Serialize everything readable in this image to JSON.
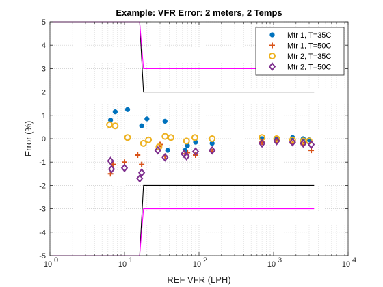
{
  "chart_data": {
    "type": "scatter",
    "title": "Example: VFR Error: 2 meters, 2 Temps",
    "xlabel": "REF VFR (LPH)",
    "ylabel": "Error (%)",
    "xscale": "log",
    "xlim": [
      1,
      10000
    ],
    "ylim": [
      -5,
      5
    ],
    "xticks": [
      1,
      10,
      100,
      1000,
      10000
    ],
    "xtick_labels": [
      {
        "base": "10",
        "exp": "0"
      },
      {
        "base": "10",
        "exp": "1"
      },
      {
        "base": "10",
        "exp": "2"
      },
      {
        "base": "10",
        "exp": "3"
      },
      {
        "base": "10",
        "exp": "4"
      }
    ],
    "yticks": [
      -5,
      -4,
      -3,
      -2,
      -1,
      0,
      1,
      2,
      3,
      4,
      5
    ],
    "grid": true,
    "minor_grid": true,
    "legend_position": "top-right",
    "series": [
      {
        "name": "Mtr 1, T=35C",
        "marker": "filled-circle",
        "color": "#0072BD",
        "x": [
          6.5,
          7.5,
          11,
          17,
          20,
          35,
          38,
          65,
          70,
          90,
          150,
          700,
          1100,
          1800,
          2500,
          3000
        ],
        "y": [
          0.8,
          1.15,
          1.25,
          0.55,
          0.85,
          0.75,
          -0.5,
          -0.5,
          -0.3,
          -0.15,
          -0.2,
          0.0,
          0.0,
          0.05,
          0.0,
          -0.05
        ]
      },
      {
        "name": "Mtr 1, T=50C",
        "marker": "plus",
        "color": "#D95319",
        "x": [
          6.5,
          7,
          10,
          15,
          17,
          30,
          35,
          65,
          70,
          90,
          150,
          700,
          1100,
          1800,
          2500,
          3200
        ],
        "y": [
          -1.5,
          -1.1,
          -1.0,
          -0.7,
          -1.1,
          -0.25,
          -0.75,
          -0.65,
          -0.6,
          -0.7,
          -0.55,
          -0.15,
          -0.1,
          -0.2,
          -0.25,
          -0.5
        ]
      },
      {
        "name": "Mtr 2, T=35C",
        "marker": "open-circle",
        "color": "#EDB120",
        "x": [
          6.3,
          7.5,
          11,
          18,
          21,
          29,
          35,
          42,
          68,
          88,
          150,
          700,
          1100,
          1800,
          2500,
          3000
        ],
        "y": [
          0.6,
          0.55,
          0.05,
          -0.2,
          -0.05,
          -0.35,
          0.1,
          0.05,
          -0.1,
          0.05,
          0.0,
          0.05,
          0.0,
          -0.05,
          -0.1,
          -0.1
        ]
      },
      {
        "name": "Mtr 2, T=50C",
        "marker": "open-diamond",
        "color": "#7E2F8E",
        "x": [
          6.5,
          6.7,
          10,
          16,
          17,
          28,
          35,
          63,
          68,
          90,
          150,
          700,
          1100,
          1800,
          2500,
          3200
        ],
        "y": [
          -0.95,
          -1.3,
          -1.25,
          -1.7,
          -1.45,
          -0.5,
          -0.8,
          -0.65,
          -0.75,
          -0.55,
          -0.5,
          -0.2,
          -0.1,
          -0.15,
          -0.2,
          -0.25
        ]
      }
    ],
    "limit_lines": [
      {
        "color": "#000000",
        "x": [
          1,
          16,
          18,
          3500
        ],
        "y": [
          5,
          5,
          2,
          2
        ]
      },
      {
        "color": "#000000",
        "x": [
          1,
          16,
          18,
          3500
        ],
        "y": [
          -5,
          -5,
          -2,
          -2
        ]
      },
      {
        "color": "#FF00FF",
        "x": [
          1,
          16,
          18,
          3500
        ],
        "y": [
          5,
          5,
          3,
          3
        ]
      },
      {
        "color": "#FF00FF",
        "x": [
          1,
          16,
          18,
          3500
        ],
        "y": [
          -5,
          -5,
          -3,
          -3
        ]
      }
    ]
  }
}
